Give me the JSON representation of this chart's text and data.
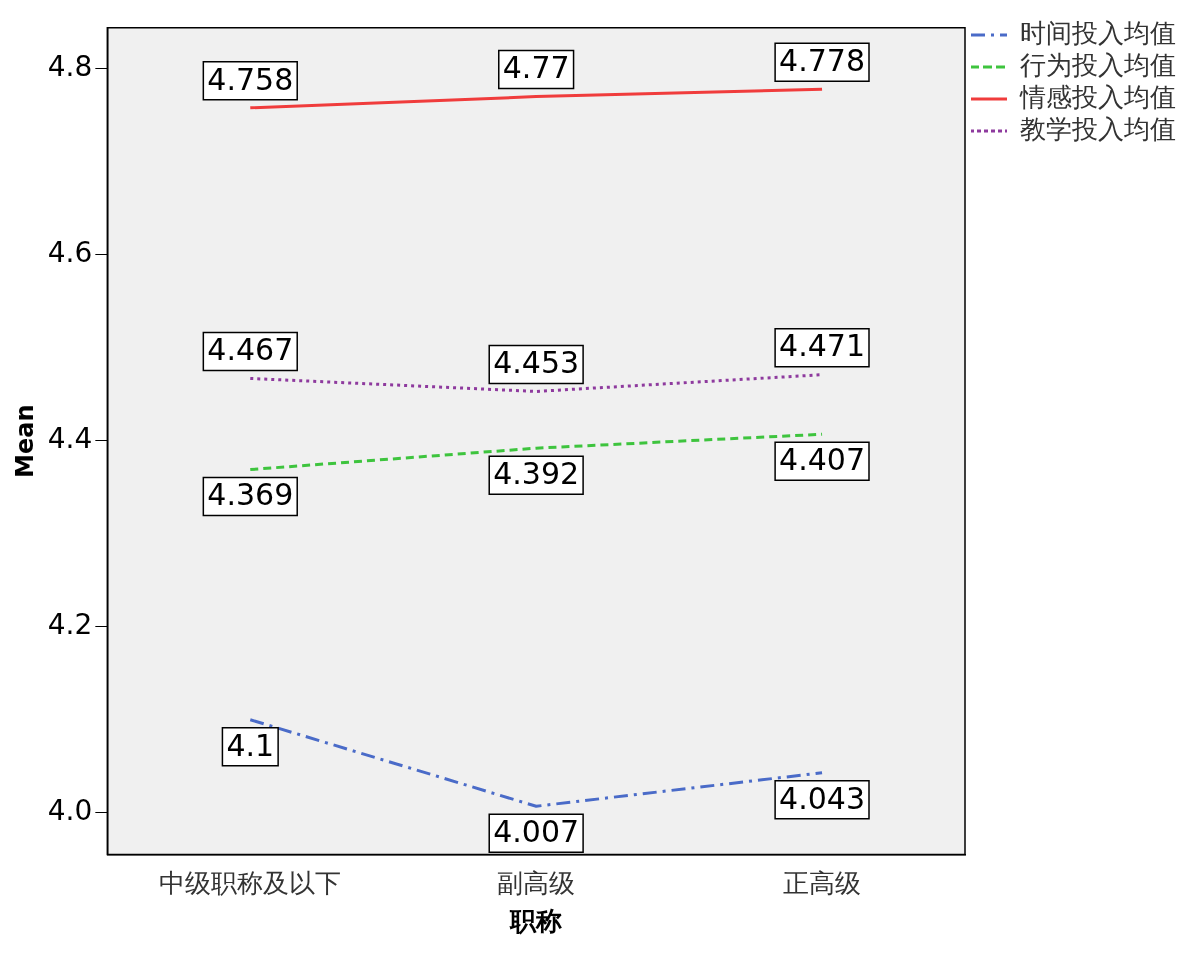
{
  "chart_data": {
    "type": "line",
    "xlabel": "职称",
    "ylabel": "Mean",
    "categories": [
      "中级职称及以下",
      "副高级",
      "正高级"
    ],
    "series": [
      {
        "name": "时间投入均值",
        "color": "#4a6bc8",
        "line_style": "dashdot",
        "values": [
          4.1,
          4.007,
          4.043
        ]
      },
      {
        "name": "行为投入均值",
        "color": "#3ec43e",
        "line_style": "dashed",
        "values": [
          4.369,
          4.392,
          4.407
        ]
      },
      {
        "name": "情感投入均值",
        "color": "#f03c3c",
        "line_style": "solid",
        "values": [
          4.758,
          4.77,
          4.778
        ]
      },
      {
        "name": "教学投入均值",
        "color": "#8e3a9e",
        "line_style": "dotted",
        "values": [
          4.467,
          4.453,
          4.471
        ]
      }
    ],
    "ylim": [
      3.955,
      4.844
    ],
    "yticks": [
      {
        "value": 4.0,
        "label": "4.0"
      },
      {
        "value": 4.2,
        "label": "4.2"
      },
      {
        "value": 4.4,
        "label": "4.4"
      },
      {
        "value": 4.6,
        "label": "4.6"
      },
      {
        "value": 4.8,
        "label": "4.8"
      }
    ],
    "grid": false,
    "legend": "top right",
    "marker": "none",
    "data_labels": true
  }
}
